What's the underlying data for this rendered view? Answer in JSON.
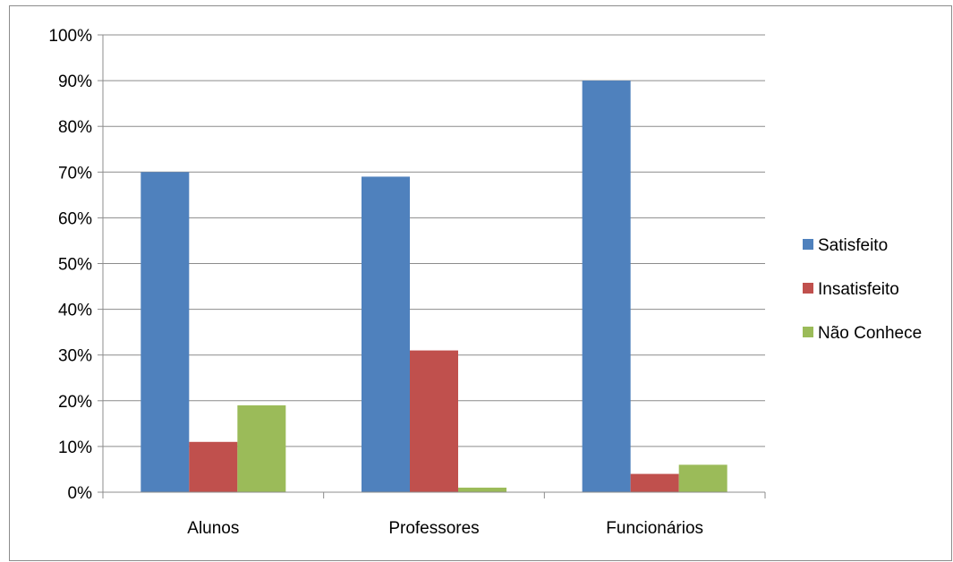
{
  "chart_data": {
    "type": "bar",
    "categories": [
      "Alunos",
      "Professores",
      "Funcionários"
    ],
    "series": [
      {
        "name": "Satisfeito",
        "color": "#4f81bd",
        "values": [
          70,
          69,
          90
        ]
      },
      {
        "name": "Insatisfeito",
        "color": "#c0504d",
        "values": [
          11,
          31,
          4
        ]
      },
      {
        "name": "Não Conhece",
        "color": "#9bbb59",
        "values": [
          19,
          1,
          6
        ]
      }
    ],
    "ylim": [
      0,
      100
    ],
    "yticks": [
      "0%",
      "10%",
      "20%",
      "30%",
      "40%",
      "50%",
      "60%",
      "70%",
      "80%",
      "90%",
      "100%"
    ],
    "grid": true,
    "legend_position": "right"
  }
}
